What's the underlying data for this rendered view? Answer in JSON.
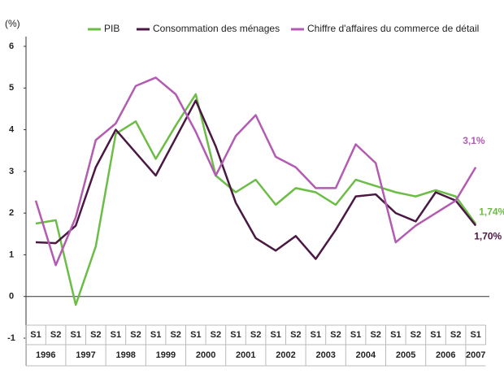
{
  "chart_data": {
    "type": "line",
    "ylabel": "(%)",
    "categories": [
      "S1",
      "S2",
      "S1",
      "S2",
      "S1",
      "S2",
      "S1",
      "S2",
      "S1",
      "S2",
      "S1",
      "S2",
      "S1",
      "S2",
      "S1",
      "S2",
      "S1",
      "S2",
      "S1",
      "S2",
      "S1",
      "S2",
      "S1"
    ],
    "years": [
      "1996",
      "1997",
      "1998",
      "1999",
      "2000",
      "2001",
      "2002",
      "2003",
      "2004",
      "2005",
      "2006",
      "2007"
    ],
    "ylim": [
      -1,
      6
    ],
    "yticks": [
      -1,
      0,
      1,
      2,
      3,
      4,
      5,
      6
    ],
    "series": [
      {
        "name": "PIB",
        "color": "#6cbd45",
        "values": [
          1.75,
          1.83,
          -0.2,
          1.2,
          3.9,
          4.2,
          3.3,
          4.1,
          4.85,
          2.9,
          2.5,
          2.8,
          2.2,
          2.6,
          2.5,
          2.2,
          2.8,
          2.65,
          2.5,
          2.4,
          2.55,
          2.4,
          1.74
        ],
        "value_labels": [
          null,
          null,
          null,
          null,
          null,
          null,
          null,
          null,
          null,
          null,
          null,
          null,
          null,
          null,
          null,
          null,
          null,
          null,
          null,
          null,
          null,
          null,
          "1,74%"
        ]
      },
      {
        "name": "Consommation des ménages",
        "color": "#4a1842",
        "values": [
          1.3,
          1.28,
          1.7,
          3.1,
          4.0,
          3.45,
          2.9,
          3.8,
          4.7,
          3.6,
          2.25,
          1.4,
          1.1,
          1.45,
          0.9,
          1.6,
          2.4,
          2.45,
          2.0,
          1.8,
          2.5,
          2.3,
          1.7
        ],
        "value_labels": [
          null,
          null,
          null,
          null,
          null,
          null,
          null,
          null,
          null,
          null,
          null,
          null,
          null,
          null,
          null,
          null,
          null,
          null,
          null,
          null,
          null,
          null,
          "1,70%"
        ]
      },
      {
        "name": "Chiffre d'affaires du commerce de détail",
        "color": "#b35bb3",
        "values": [
          2.3,
          0.75,
          1.9,
          3.75,
          4.15,
          5.05,
          5.25,
          4.85,
          3.95,
          2.9,
          3.85,
          4.35,
          3.35,
          3.1,
          2.6,
          2.6,
          3.65,
          3.2,
          1.3,
          1.7,
          2.0,
          2.3,
          3.1
        ],
        "value_labels": [
          null,
          null,
          null,
          null,
          null,
          null,
          null,
          null,
          null,
          null,
          null,
          null,
          null,
          null,
          null,
          null,
          null,
          null,
          null,
          null,
          null,
          null,
          "3,1%"
        ]
      }
    ]
  }
}
